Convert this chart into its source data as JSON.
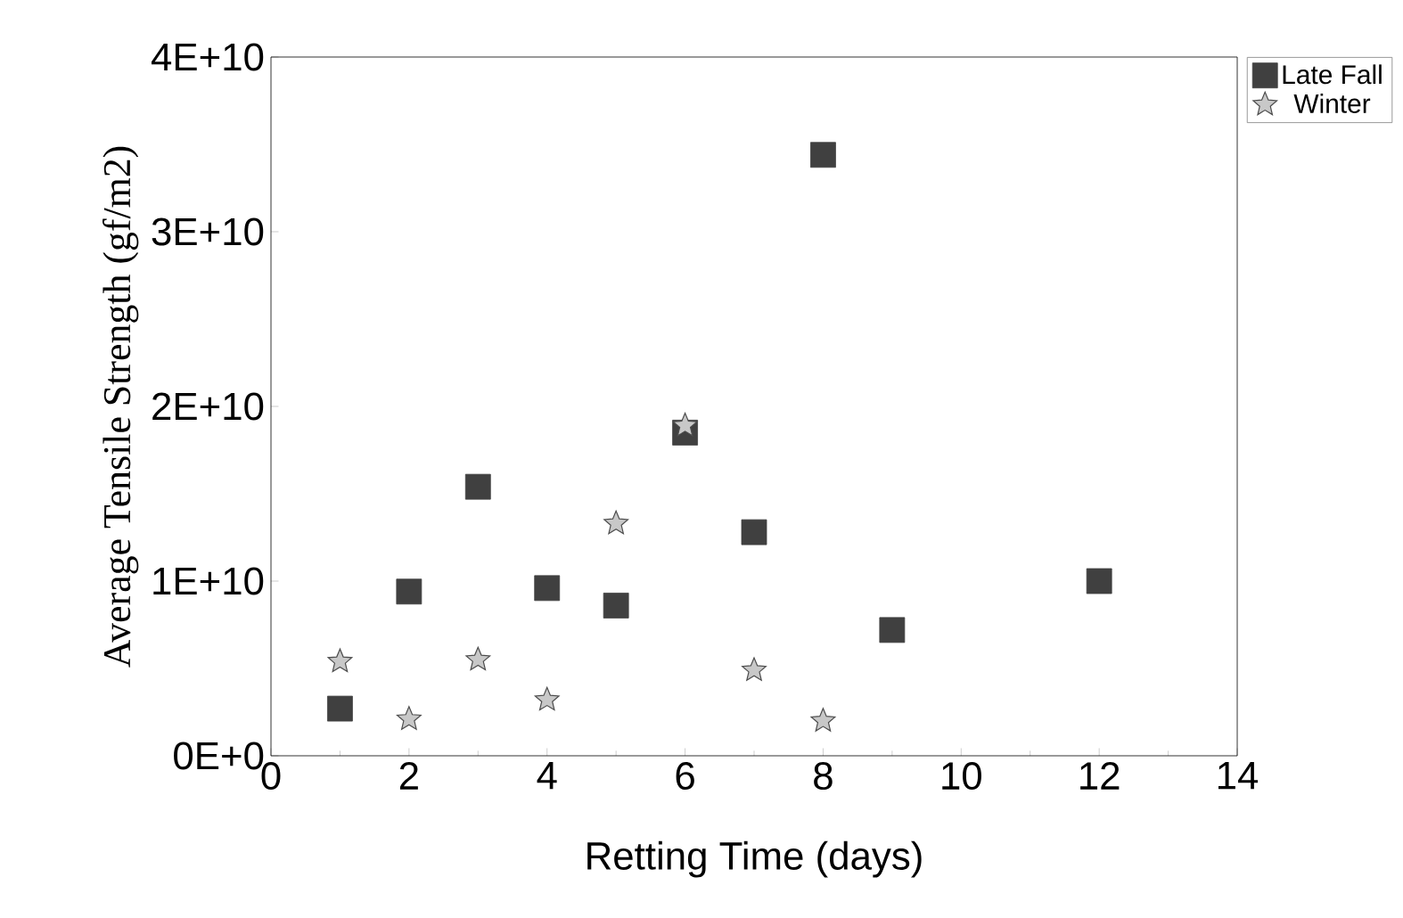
{
  "chart_data": {
    "type": "scatter",
    "xlabel": "Retting Time (days)",
    "ylabel": "Average Tensile Strength (gf/m2)",
    "series": [
      {
        "name": "Late Fall",
        "color": "#404040",
        "marker": "square",
        "x": [
          1,
          2,
          3,
          4,
          5,
          6,
          7,
          8,
          9,
          12
        ],
        "values": [
          2700000000.0,
          9400000000.0,
          15400000000.0,
          9600000000.0,
          8600000000.0,
          18500000000.0,
          12800000000.0,
          34400000000.0,
          7200000000.0,
          10000000000.0
        ]
      },
      {
        "name": "Winter",
        "color": "#c8c8c8",
        "marker": "star",
        "x": [
          1,
          2,
          3,
          4,
          5,
          6,
          7,
          8
        ],
        "values": [
          5400000000.0,
          2100000000.0,
          5500000000.0,
          3200000000.0,
          13300000000.0,
          18900000000.0,
          4900000000.0,
          2000000000.0
        ]
      }
    ],
    "xlim": [
      0,
      14
    ],
    "xticks": [
      0,
      2,
      4,
      6,
      8,
      10,
      12,
      14
    ],
    "ylim": [
      0,
      40000000000.0
    ],
    "yticks": [
      {
        "value": 0,
        "label": "0E+0"
      },
      {
        "value": 10000000000.0,
        "label": "1E+10"
      },
      {
        "value": 20000000000.0,
        "label": "2E+10"
      },
      {
        "value": 30000000000.0,
        "label": "3E+10"
      },
      {
        "value": 40000000000.0,
        "label": "4E+10"
      }
    ],
    "legend": "top right",
    "grid": false
  }
}
